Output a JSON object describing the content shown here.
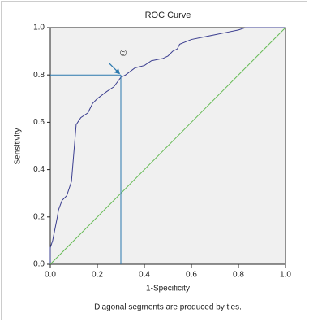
{
  "chart_data": {
    "type": "line",
    "title": "ROC Curve",
    "x_label": "1-Specificity",
    "y_label": "Sensitivity",
    "footnote": "Diagonal segments are produced by ties.",
    "xlim": [
      0,
      1
    ],
    "ylim": [
      0,
      1
    ],
    "xticks": [
      {
        "value": 0,
        "label": "0.0"
      },
      {
        "value": 0.2,
        "label": "0.2"
      },
      {
        "value": 0.4,
        "label": "0.4"
      },
      {
        "value": 0.6,
        "label": "0.6"
      },
      {
        "value": 0.8,
        "label": "0.8"
      },
      {
        "value": 1,
        "label": "1.0"
      }
    ],
    "yticks": [
      {
        "value": 0,
        "label": "0.0"
      },
      {
        "value": 0.2,
        "label": "0.2"
      },
      {
        "value": 0.4,
        "label": "0.4"
      },
      {
        "value": 0.6,
        "label": "0.6"
      },
      {
        "value": 0.8,
        "label": "0.8"
      },
      {
        "value": 1,
        "label": "1.0"
      }
    ],
    "series": [
      {
        "color": "#3a3d8f",
        "x": [
          0,
          0,
          0.01,
          0.02,
          0.03,
          0.035,
          0.05,
          0.07,
          0.09,
          0.11,
          0.13,
          0.16,
          0.18,
          0.2,
          0.24,
          0.27,
          0.3,
          0.32,
          0.36,
          0.4,
          0.43,
          0.48,
          0.5,
          0.52,
          0.54,
          0.55,
          0.6,
          0.65,
          0.7,
          0.75,
          0.8,
          0.83,
          1
        ],
        "values": [
          0,
          0.07,
          0.1,
          0.15,
          0.2,
          0.23,
          0.27,
          0.29,
          0.35,
          0.59,
          0.62,
          0.64,
          0.68,
          0.7,
          0.73,
          0.75,
          0.79,
          0.8,
          0.83,
          0.84,
          0.86,
          0.87,
          0.88,
          0.9,
          0.91,
          0.93,
          0.95,
          0.96,
          0.97,
          0.98,
          0.99,
          1,
          1
        ]
      },
      {
        "color": "#66bb55",
        "x": [
          0,
          1
        ],
        "values": [
          0,
          1
        ]
      }
    ],
    "reference_point": {
      "x": 0.3,
      "y": 0.8,
      "color": "#2a78ae",
      "annotation": "©"
    }
  }
}
